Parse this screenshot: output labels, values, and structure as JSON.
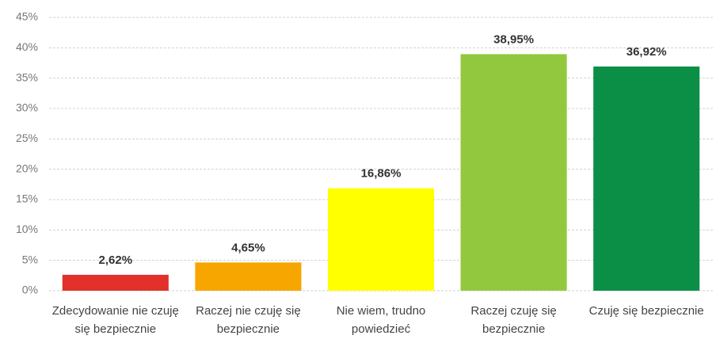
{
  "chart_data": {
    "type": "bar",
    "categories": [
      "Zdecydowanie nie czuję się bezpiecznie",
      "Raczej nie czuję się bezpiecznie",
      "Nie wiem, trudno powiedzieć",
      "Raczej czuję się bezpiecznie",
      "Czuję się bezpiecznie"
    ],
    "values": [
      2.62,
      4.65,
      16.86,
      38.95,
      36.92
    ],
    "value_labels": [
      "2,62%",
      "4,65%",
      "16,86%",
      "38,95%",
      "36,92%"
    ],
    "colors": [
      "#e2302a",
      "#f7a600",
      "#ffff00",
      "#92c83e",
      "#0b8f47"
    ],
    "ylim": [
      0,
      45
    ],
    "yticks": [
      {
        "value": 0,
        "label": "0%"
      },
      {
        "value": 5,
        "label": "5%"
      },
      {
        "value": 10,
        "label": "10%"
      },
      {
        "value": 15,
        "label": "15%"
      },
      {
        "value": 20,
        "label": "20%"
      },
      {
        "value": 25,
        "label": "25%"
      },
      {
        "value": 30,
        "label": "30%"
      },
      {
        "value": 35,
        "label": "35%"
      },
      {
        "value": 40,
        "label": "40%"
      },
      {
        "value": 45,
        "label": "45%"
      }
    ],
    "grid": true
  }
}
